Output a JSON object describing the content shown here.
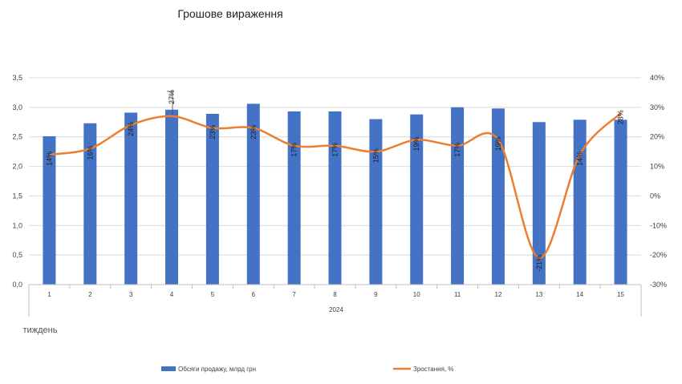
{
  "chart_data": {
    "type": "bar",
    "title": "Грошове вираження",
    "categories": [
      "1",
      "2",
      "3",
      "4",
      "5",
      "6",
      "7",
      "8",
      "9",
      "10",
      "11",
      "12",
      "13",
      "14",
      "15"
    ],
    "category_group": "2024",
    "xlabel": "тиждень",
    "series": [
      {
        "name": "Обсяги продажу, млрд грн",
        "type": "bar",
        "axis": "left",
        "color": "#4472C4",
        "values": [
          2.51,
          2.73,
          2.91,
          2.96,
          2.89,
          3.06,
          2.93,
          2.93,
          2.8,
          2.88,
          3.0,
          2.98,
          2.75,
          2.79,
          2.79
        ]
      },
      {
        "name": "Зростання, %",
        "type": "line",
        "axis": "right",
        "color": "#ED7D31",
        "values": [
          14,
          16,
          24,
          27,
          23,
          23,
          17,
          17,
          15,
          19,
          17,
          19,
          -21,
          14,
          28
        ],
        "labels": [
          "14%",
          "16%",
          "24%",
          "27%",
          "23%",
          "23%",
          "17%",
          "17%",
          "15%",
          "19%",
          "17%",
          "19%",
          "-21%",
          "14%",
          "28%"
        ]
      }
    ],
    "y_left": {
      "ticks": [
        "0,0",
        "0,5",
        "1,0",
        "1,5",
        "2,0",
        "2,5",
        "3,0",
        "3,5"
      ],
      "ylim": [
        0,
        3.5
      ]
    },
    "y_right": {
      "ticks": [
        "-30%",
        "-20%",
        "-10%",
        "0%",
        "10%",
        "20%",
        "30%",
        "40%"
      ],
      "ylim": [
        -30,
        40
      ]
    },
    "grid": true,
    "legend_position": "bottom"
  }
}
